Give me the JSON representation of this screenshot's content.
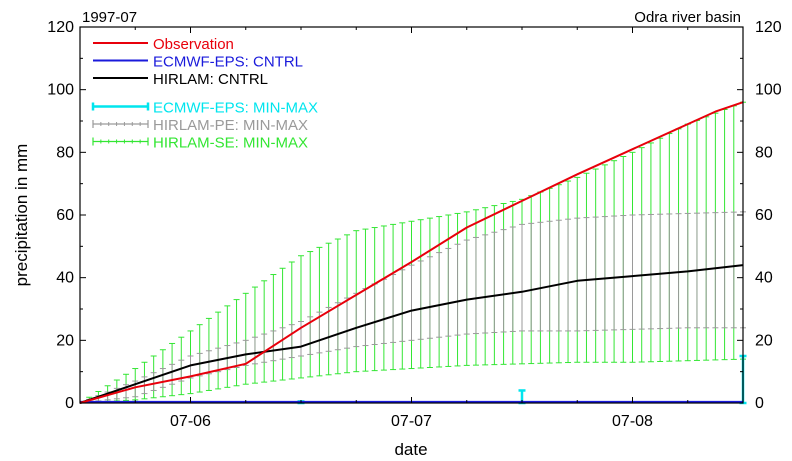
{
  "chart_data": {
    "type": "line",
    "period_label": "1997-07",
    "region_label": "Odra river basin",
    "xlabel": "date",
    "ylabel": "precipitation in mm",
    "x_start": "1997-07-05 12:00",
    "x_end": "1997-07-08 12:00",
    "xlim": [
      0,
      72
    ],
    "x_unit": "hours",
    "x_ticks": [
      {
        "value": 12,
        "label": "07-06"
      },
      {
        "value": 36,
        "label": "07-07"
      },
      {
        "value": 60,
        "label": "07-08"
      }
    ],
    "ylim": [
      0,
      120
    ],
    "y_ticks": [
      0,
      20,
      40,
      60,
      80,
      100,
      120
    ],
    "grid": false,
    "legend_position": "top-left",
    "series": [
      {
        "name": "Observation",
        "kind": "line",
        "color": "#e8000b",
        "points": [
          [
            0,
            0
          ],
          [
            6,
            5
          ],
          [
            12,
            8.5
          ],
          [
            18,
            12.5
          ],
          [
            24,
            24
          ],
          [
            36,
            45
          ],
          [
            42,
            56
          ],
          [
            48,
            64.5
          ],
          [
            54,
            73
          ],
          [
            60,
            81
          ],
          [
            66,
            89
          ],
          [
            69,
            93
          ],
          [
            72,
            96
          ]
        ]
      },
      {
        "name": "ECMWF-EPS: CNTRL",
        "kind": "line",
        "color": "#1a1adb",
        "points": [
          [
            0,
            0.3
          ],
          [
            24,
            0.3
          ],
          [
            48,
            0.3
          ],
          [
            72,
            0.3
          ]
        ]
      },
      {
        "name": "HIRLAM: CNTRL",
        "kind": "line",
        "color": "#000000",
        "points": [
          [
            0,
            0
          ],
          [
            6,
            6
          ],
          [
            12,
            12
          ],
          [
            18,
            15.5
          ],
          [
            24,
            18
          ],
          [
            30,
            24
          ],
          [
            36,
            29.5
          ],
          [
            42,
            33
          ],
          [
            48,
            35.5
          ],
          [
            54,
            39
          ],
          [
            60,
            40.5
          ],
          [
            66,
            42
          ],
          [
            72,
            44
          ]
        ]
      },
      {
        "name": "ECMWF-EPS: MIN-MAX",
        "kind": "range",
        "color": "#00e5ee",
        "x_step": 24,
        "points": [
          [
            24,
            0,
            0.5
          ],
          [
            48,
            0,
            4
          ],
          [
            72,
            0,
            15
          ]
        ]
      },
      {
        "name": "HIRLAM-PE: MIN-MAX",
        "kind": "range",
        "color": "#9a9a9a",
        "x_step": 1,
        "points": [
          [
            0,
            0,
            0
          ],
          [
            6,
            2,
            7
          ],
          [
            12,
            8,
            15
          ],
          [
            18,
            12,
            20
          ],
          [
            24,
            15,
            26
          ],
          [
            30,
            18,
            35
          ],
          [
            36,
            20,
            44
          ],
          [
            42,
            22,
            52
          ],
          [
            48,
            23,
            57
          ],
          [
            54,
            23,
            59
          ],
          [
            60,
            23.5,
            60
          ],
          [
            66,
            24,
            60.5
          ],
          [
            72,
            24,
            61
          ]
        ]
      },
      {
        "name": "HIRLAM-SE: MIN-MAX",
        "kind": "range",
        "color": "#33e633",
        "x_step": 1,
        "points": [
          [
            0,
            0,
            0
          ],
          [
            6,
            1,
            11
          ],
          [
            12,
            3,
            23
          ],
          [
            18,
            6,
            35
          ],
          [
            24,
            8,
            47
          ],
          [
            30,
            10,
            55
          ],
          [
            36,
            11,
            58
          ],
          [
            42,
            12,
            61
          ],
          [
            48,
            12.5,
            65
          ],
          [
            54,
            13,
            72
          ],
          [
            60,
            13,
            80
          ],
          [
            66,
            13.5,
            89
          ],
          [
            72,
            14,
            96
          ]
        ]
      }
    ]
  }
}
